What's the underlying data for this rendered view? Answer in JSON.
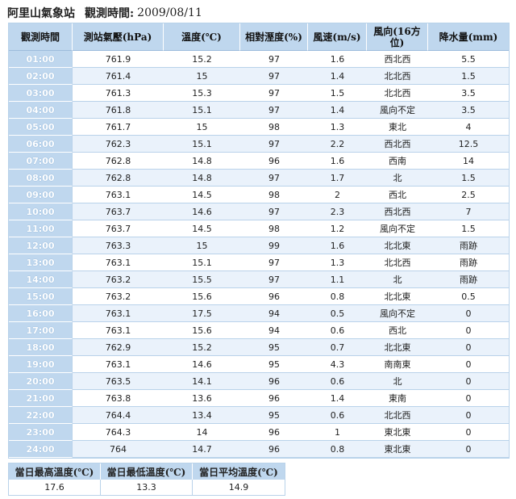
{
  "header": {
    "station": "阿里山氣象站",
    "obs_label": "觀測時間:",
    "obs_date": "2009/08/11"
  },
  "table": {
    "columns": [
      "觀測時間",
      "測站氣壓(hPa)",
      "溫度(℃)",
      "相對溼度(%)",
      "風速(m/s)",
      "風向(16方位)",
      "降水量(mm)"
    ],
    "rows": [
      [
        "01:00",
        "761.9",
        "15.2",
        "97",
        "1.6",
        "西北西",
        "5.5"
      ],
      [
        "02:00",
        "761.4",
        "15",
        "97",
        "1.4",
        "北北西",
        "1.5"
      ],
      [
        "03:00",
        "761.3",
        "15.3",
        "97",
        "1.5",
        "北北西",
        "3.5"
      ],
      [
        "04:00",
        "761.8",
        "15.1",
        "97",
        "1.4",
        "風向不定",
        "3.5"
      ],
      [
        "05:00",
        "761.7",
        "15",
        "98",
        "1.3",
        "東北",
        "4"
      ],
      [
        "06:00",
        "762.3",
        "15.1",
        "97",
        "2.2",
        "西北西",
        "12.5"
      ],
      [
        "07:00",
        "762.8",
        "14.8",
        "96",
        "1.6",
        "西南",
        "14"
      ],
      [
        "08:00",
        "762.8",
        "14.8",
        "97",
        "1.7",
        "北",
        "1.5"
      ],
      [
        "09:00",
        "763.1",
        "14.5",
        "98",
        "2",
        "西北",
        "2.5"
      ],
      [
        "10:00",
        "763.7",
        "14.6",
        "97",
        "2.3",
        "西北西",
        "7"
      ],
      [
        "11:00",
        "763.7",
        "14.5",
        "98",
        "1.2",
        "風向不定",
        "1.5"
      ],
      [
        "12:00",
        "763.3",
        "15",
        "99",
        "1.6",
        "北北東",
        "雨跡"
      ],
      [
        "13:00",
        "763.1",
        "15.1",
        "97",
        "1.3",
        "北北西",
        "雨跡"
      ],
      [
        "14:00",
        "763.2",
        "15.5",
        "97",
        "1.1",
        "北",
        "雨跡"
      ],
      [
        "15:00",
        "763.2",
        "15.6",
        "96",
        "0.8",
        "北北東",
        "0.5"
      ],
      [
        "16:00",
        "763.1",
        "17.5",
        "94",
        "0.5",
        "風向不定",
        "0"
      ],
      [
        "17:00",
        "763.1",
        "15.6",
        "94",
        "0.6",
        "西北",
        "0"
      ],
      [
        "18:00",
        "762.9",
        "15.2",
        "95",
        "0.7",
        "北北東",
        "0"
      ],
      [
        "19:00",
        "763.1",
        "14.6",
        "95",
        "4.3",
        "南南東",
        "0"
      ],
      [
        "20:00",
        "763.5",
        "14.1",
        "96",
        "0.6",
        "北",
        "0"
      ],
      [
        "21:00",
        "763.8",
        "13.6",
        "96",
        "1.4",
        "東南",
        "0"
      ],
      [
        "22:00",
        "764.4",
        "13.4",
        "95",
        "0.6",
        "北北西",
        "0"
      ],
      [
        "23:00",
        "764.3",
        "14",
        "96",
        "1",
        "東北東",
        "0"
      ],
      [
        "24:00",
        "764",
        "14.7",
        "96",
        "0.8",
        "東北東",
        "0"
      ]
    ]
  },
  "summary": {
    "columns": [
      "當日最高溫度(℃)",
      "當日最低溫度(℃)",
      "當日平均溫度(℃)"
    ],
    "values": [
      "17.6",
      "13.3",
      "14.9"
    ]
  }
}
